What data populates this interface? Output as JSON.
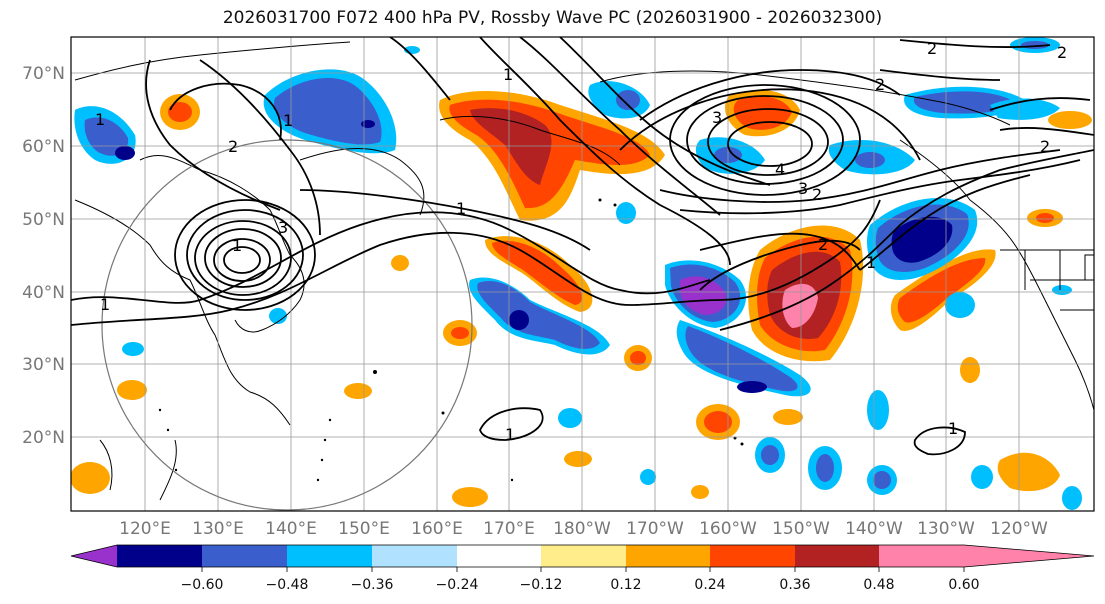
{
  "title": "2026031700 F072 400 hPa PV, Rossby Wave PC (2026031900 - 2026032300)",
  "lat_labels": [
    "70°N",
    "60°N",
    "50°N",
    "40°N",
    "30°N",
    "20°N"
  ],
  "lon_labels": [
    "120°E",
    "130°E",
    "140°E",
    "150°E",
    "160°E",
    "170°E",
    "180°W",
    "170°W",
    "160°W",
    "150°W",
    "140°W",
    "130°W",
    "120°W"
  ],
  "colorbar": {
    "ticks": [
      "−0.60",
      "−0.48",
      "−0.36",
      "−0.24",
      "−0.12",
      "0.12",
      "0.24",
      "0.36",
      "0.48",
      "0.60"
    ],
    "colors": [
      "#9932cc",
      "#00008b",
      "#3a5fcd",
      "#00bfff",
      "#b0e2ff",
      "#ffffff",
      "#ffec8b",
      "#ffa500",
      "#ff4500",
      "#b22222",
      "#ff82ab"
    ]
  },
  "contour_labels": [
    "1",
    "2",
    "3",
    "4"
  ]
}
